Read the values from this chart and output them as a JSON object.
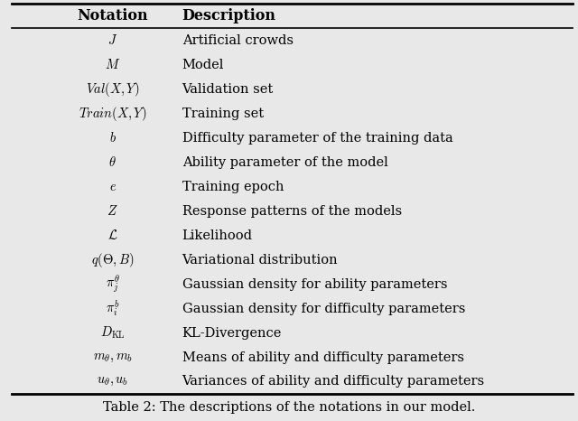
{
  "title": "Table 2: The descriptions of the notations in our model.",
  "col1_header": "Notation",
  "col2_header": "Description",
  "rows_col1": [
    "$J$",
    "$M$",
    "$Val(X,Y)$",
    "$Train(X,Y)$",
    "$b$",
    "$\\theta$",
    "$e$",
    "$Z$",
    "$\\mathcal{L}$",
    "$q(\\Theta, B)$",
    "$\\pi^{\\theta}_{j}$",
    "$\\pi^{b}_{i}$",
    "$D_{\\mathrm{KL}}$",
    "$m_{\\theta}, m_{b}$",
    "$u_{\\theta}, u_{b}$"
  ],
  "rows_col2": [
    "Artificial crowds",
    "Model",
    "Validation set",
    "Training set",
    "Difficulty parameter of the training data",
    "Ability parameter of the model",
    "Training epoch",
    "Response patterns of the models",
    "Likelihood",
    "Variational distribution",
    "Gaussian density for ability parameters",
    "Gaussian density for difficulty parameters",
    "KL-Divergence",
    "Means of ability and difficulty parameters",
    "Variances of ability and difficulty parameters"
  ],
  "bg_color": "#ffffff",
  "fig_bg": "#e8e8e8",
  "text_color": "#000000",
  "font_size": 10.5,
  "header_font_size": 11.5,
  "figsize": [
    6.4,
    4.66
  ],
  "dpi": 100
}
